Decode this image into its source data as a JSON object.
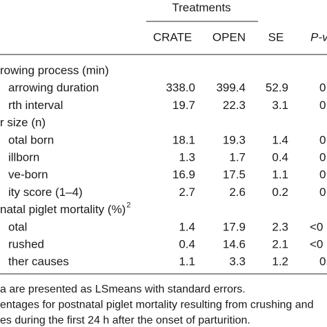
{
  "table": {
    "group_header": "Treatments",
    "columns": [
      "CRATE",
      "OPEN",
      "SE",
      "P-v"
    ],
    "rows": [
      {
        "label": "rowing process (min)"
      },
      {
        "label": "arrowing duration",
        "cells": [
          "338.0",
          "399.4",
          "52.9",
          "0"
        ]
      },
      {
        "label": "rth interval",
        "cells": [
          "19.7",
          "22.3",
          "3.1",
          "0"
        ]
      },
      {
        "label": "r size (n)"
      },
      {
        "label": "otal born",
        "cells": [
          "18.1",
          "19.3",
          "1.4",
          "0"
        ]
      },
      {
        "label": "illborn",
        "cells": [
          "1.3",
          "1.7",
          "0.4",
          "0"
        ]
      },
      {
        "label": "ve-born",
        "cells": [
          "16.9",
          "17.5",
          "1.1",
          "0"
        ]
      },
      {
        "label": "ity score (1–4)",
        "cells": [
          "2.7",
          "2.6",
          "0.2",
          "0"
        ]
      },
      {
        "label": "natal piglet mortality (%)",
        "superscript": "2"
      },
      {
        "label": "otal",
        "cells": [
          "1.4",
          "17.9",
          "2.3",
          "<0"
        ]
      },
      {
        "label": "rushed",
        "cells": [
          "0.4",
          "14.6",
          "2.1",
          "<0"
        ]
      },
      {
        "label": "ther causes",
        "cells": [
          "1.1",
          "3.3",
          "1.2",
          "0"
        ]
      }
    ],
    "footnotes": [
      "a are presented as LSmeans with standard errors.",
      "entages for postnatal piglet mortality resulting from crushing and",
      "es during the first 24 h after the onset of parturition."
    ]
  }
}
